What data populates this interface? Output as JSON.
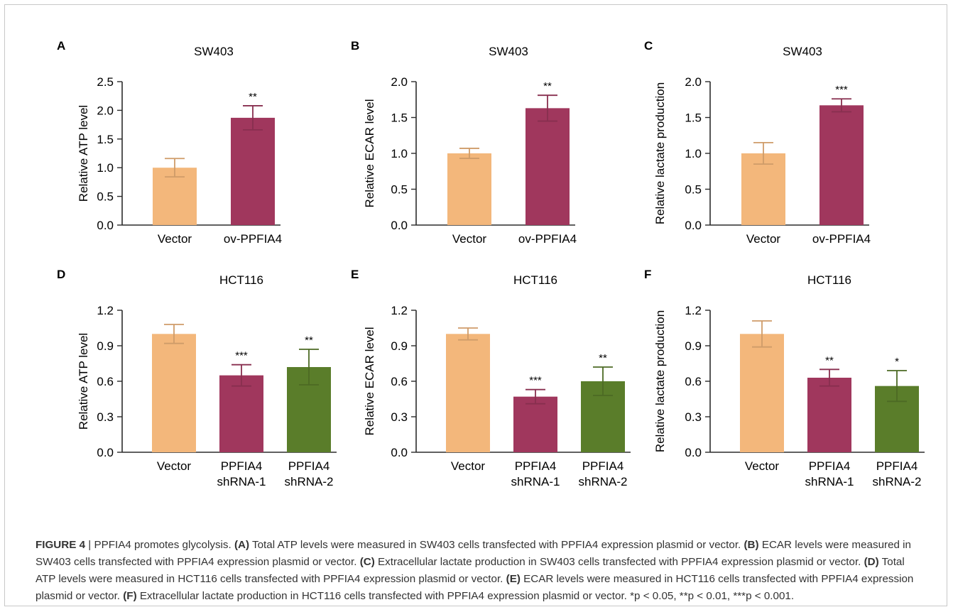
{
  "chart_data": [
    {
      "type": "bar",
      "panel": "A",
      "title": "SW403",
      "ylabel": "Relative ATP level",
      "ylim": [
        0,
        2.5
      ],
      "yticks": [
        "0.0",
        "0.5",
        "1.0",
        "1.5",
        "2.0",
        "2.5"
      ],
      "categories": [
        [
          "Vector"
        ],
        [
          "ov-PPFIA4"
        ]
      ],
      "values": [
        1.0,
        1.87
      ],
      "errors": [
        0.16,
        0.21
      ],
      "significance": [
        "",
        "**"
      ],
      "colors": [
        "#f3b77b",
        "#a0375d"
      ]
    },
    {
      "type": "bar",
      "panel": "B",
      "title": "SW403",
      "ylabel": "Relative ECAR level",
      "ylim": [
        0,
        2.0
      ],
      "yticks": [
        "0.0",
        "0.5",
        "1.0",
        "1.5",
        "2.0"
      ],
      "categories": [
        [
          "Vector"
        ],
        [
          "ov-PPFIA4"
        ]
      ],
      "values": [
        1.0,
        1.63
      ],
      "errors": [
        0.07,
        0.18
      ],
      "significance": [
        "",
        "**"
      ],
      "colors": [
        "#f3b77b",
        "#a0375d"
      ]
    },
    {
      "type": "bar",
      "panel": "C",
      "title": "SW403",
      "ylabel": "Relative lactate production",
      "ylim": [
        0,
        2.0
      ],
      "yticks": [
        "0.0",
        "0.5",
        "1.0",
        "1.5",
        "2.0"
      ],
      "categories": [
        [
          "Vector"
        ],
        [
          "ov-PPFIA4"
        ]
      ],
      "values": [
        1.0,
        1.67
      ],
      "errors": [
        0.15,
        0.09
      ],
      "significance": [
        "",
        "***"
      ],
      "colors": [
        "#f3b77b",
        "#a0375d"
      ]
    },
    {
      "type": "bar",
      "panel": "D",
      "title": "HCT116",
      "ylabel": "Relative ATP level",
      "ylim": [
        0,
        1.2
      ],
      "yticks": [
        "0.0",
        "0.3",
        "0.6",
        "0.9",
        "1.2"
      ],
      "categories": [
        [
          "Vector"
        ],
        [
          "PPFIA4",
          "shRNA-1"
        ],
        [
          "PPFIA4",
          "shRNA-2"
        ]
      ],
      "values": [
        1.0,
        0.65,
        0.72
      ],
      "errors": [
        0.08,
        0.09,
        0.15
      ],
      "significance": [
        "",
        "***",
        "**"
      ],
      "colors": [
        "#f3b77b",
        "#a0375d",
        "#5a7d2a"
      ]
    },
    {
      "type": "bar",
      "panel": "E",
      "title": "HCT116",
      "ylabel": "Relative ECAR level",
      "ylim": [
        0,
        1.2
      ],
      "yticks": [
        "0.0",
        "0.3",
        "0.6",
        "0.9",
        "1.2"
      ],
      "categories": [
        [
          "Vector"
        ],
        [
          "PPFIA4",
          "shRNA-1"
        ],
        [
          "PPFIA4",
          "shRNA-2"
        ]
      ],
      "values": [
        1.0,
        0.47,
        0.6
      ],
      "errors": [
        0.05,
        0.06,
        0.12
      ],
      "significance": [
        "",
        "***",
        "**"
      ],
      "colors": [
        "#f3b77b",
        "#a0375d",
        "#5a7d2a"
      ]
    },
    {
      "type": "bar",
      "panel": "F",
      "title": "HCT116",
      "ylabel": "Relative lactate production",
      "ylim": [
        0,
        1.2
      ],
      "yticks": [
        "0.0",
        "0.3",
        "0.6",
        "0.9",
        "1.2"
      ],
      "categories": [
        [
          "Vector"
        ],
        [
          "PPFIA4",
          "shRNA-1"
        ],
        [
          "PPFIA4",
          "shRNA-2"
        ]
      ],
      "values": [
        1.0,
        0.63,
        0.56
      ],
      "errors": [
        0.11,
        0.07,
        0.13
      ],
      "significance": [
        "",
        "**",
        "*"
      ],
      "colors": [
        "#f3b77b",
        "#a0375d",
        "#5a7d2a"
      ]
    }
  ],
  "caption": {
    "figure_label": "FIGURE 4",
    "separator": " | ",
    "title": "PPFIA4 promotes glycolysis.",
    "parts": [
      {
        "label": "(A)",
        "text": "Total ATP levels were measured in SW403 cells transfected with PPFIA4 expression plasmid or vector."
      },
      {
        "label": "(B)",
        "text": "ECAR levels were measured in SW403 cells transfected with PPFIA4 expression plasmid or vector."
      },
      {
        "label": "(C)",
        "text": "Extracellular lactate production in SW403 cells transfected with PPFIA4 expression plasmid or vector."
      },
      {
        "label": "(D)",
        "text": "Total ATP levels were measured in HCT116 cells transfected with PPFIA4 expression plasmid or vector."
      },
      {
        "label": "(E)",
        "text": "ECAR levels were measured in HCT116 cells transfected with PPFIA4 expression plasmid or vector."
      },
      {
        "label": "(F)",
        "text": "Extracellular lactate production in HCT116 cells transfected with PPFIA4 expression plasmid or vector."
      }
    ],
    "footnote": "*p < 0.05, **p < 0.01, ***p < 0.001."
  }
}
